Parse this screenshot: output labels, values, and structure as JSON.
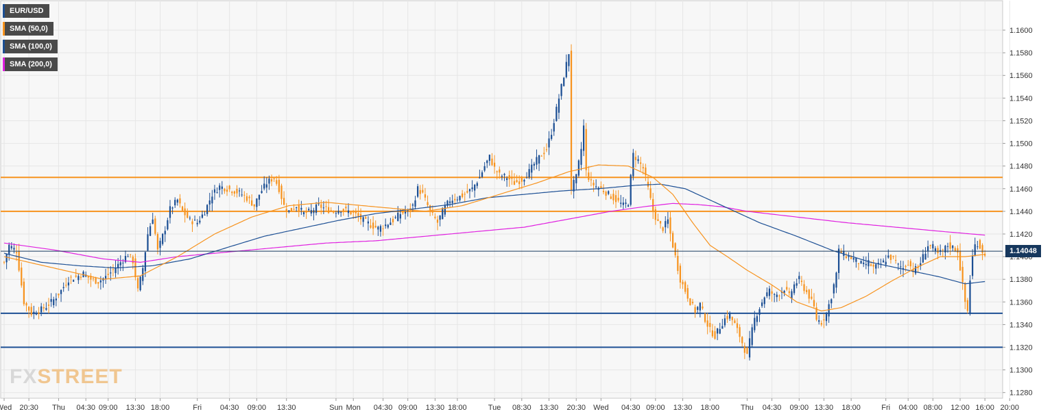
{
  "chart_data": {
    "type": "candlestick",
    "symbol": "EUR/USD",
    "legend": [
      {
        "label": "EUR/USD",
        "color": "#1c4f94"
      },
      {
        "label": "SMA (50,0)",
        "color": "#f7931e"
      },
      {
        "label": "SMA (100,0)",
        "color": "#1c4f94"
      },
      {
        "label": "SMA (200,0)",
        "color": "#e020e0"
      }
    ],
    "y_axis": {
      "ticks": [
        "1.1600",
        "1.1580",
        "1.1560",
        "1.1540",
        "1.1520",
        "1.1500",
        "1.1480",
        "1.1460",
        "1.1440",
        "1.1420",
        "1.1400",
        "1.1380",
        "1.1360",
        "1.1340",
        "1.1320",
        "1.1300",
        "1.1280"
      ],
      "ylim": [
        1.1275,
        1.1626
      ]
    },
    "x_axis": {
      "ticks": [
        "Wed",
        "20:30",
        "Thu",
        "04:30",
        "09:00",
        "13:30",
        "18:00",
        "Fri",
        "04:30",
        "09:00",
        "13:30",
        "Sun",
        "Mon",
        "04:30",
        "09:00",
        "13:30",
        "18:00",
        "Tue",
        "08:30",
        "13:30",
        "20:30",
        "Wed",
        "04:30",
        "09:00",
        "13:30",
        "18:00",
        "Thu",
        "04:30",
        "09:00",
        "13:30",
        "18:00",
        "Fri",
        "04:00",
        "08:00",
        "12:00",
        "16:00",
        "20:00"
      ],
      "tick_bar_index": [
        0,
        10,
        22,
        33,
        42,
        53,
        63,
        78,
        91,
        102,
        114,
        134,
        141,
        153,
        163,
        174,
        183,
        198,
        209,
        220,
        231,
        241,
        253,
        263,
        274,
        285,
        300,
        310,
        321,
        331,
        342,
        356,
        365,
        375,
        386,
        396,
        406
      ]
    },
    "current_price": "1.14048",
    "grid": true,
    "horizontal_levels": [
      {
        "value": 1.147,
        "color": "#f7931e"
      },
      {
        "value": 1.144,
        "color": "#f7931e"
      },
      {
        "value": 1.135,
        "color": "#1c4f94"
      },
      {
        "value": 1.132,
        "color": "#1c4f94"
      }
    ],
    "anchors": [
      [
        0,
        1.1395
      ],
      [
        2,
        1.141
      ],
      [
        5,
        1.1405
      ],
      [
        8,
        1.136
      ],
      [
        11,
        1.135
      ],
      [
        14,
        1.1352
      ],
      [
        17,
        1.1356
      ],
      [
        20,
        1.1362
      ],
      [
        23,
        1.137
      ],
      [
        26,
        1.138
      ],
      [
        29,
        1.1382
      ],
      [
        32,
        1.1385
      ],
      [
        35,
        1.138
      ],
      [
        38,
        1.1378
      ],
      [
        41,
        1.1382
      ],
      [
        44,
        1.1388
      ],
      [
        47,
        1.1395
      ],
      [
        50,
        1.1402
      ],
      [
        52,
        1.1396
      ],
      [
        54,
        1.137
      ],
      [
        56,
        1.139
      ],
      [
        58,
        1.142
      ],
      [
        60,
        1.1435
      ],
      [
        62,
        1.1405
      ],
      [
        65,
        1.1425
      ],
      [
        67,
        1.1442
      ],
      [
        70,
        1.145
      ],
      [
        72,
        1.144
      ],
      [
        75,
        1.1432
      ],
      [
        78,
        1.143
      ],
      [
        81,
        1.144
      ],
      [
        84,
        1.1455
      ],
      [
        87,
        1.1462
      ],
      [
        90,
        1.146
      ],
      [
        93,
        1.1458
      ],
      [
        96,
        1.1455
      ],
      [
        99,
        1.145
      ],
      [
        101,
        1.1445
      ],
      [
        103,
        1.1455
      ],
      [
        106,
        1.1465
      ],
      [
        109,
        1.147
      ],
      [
        111,
        1.146
      ],
      [
        113,
        1.1445
      ],
      [
        115,
        1.144
      ],
      [
        118,
        1.1445
      ],
      [
        121,
        1.1438
      ],
      [
        124,
        1.144
      ],
      [
        127,
        1.1445
      ],
      [
        130,
        1.1442
      ],
      [
        133,
        1.144
      ],
      [
        136,
        1.1442
      ],
      [
        139,
        1.144
      ],
      [
        142,
        1.1437
      ],
      [
        145,
        1.1432
      ],
      [
        148,
        1.1428
      ],
      [
        151,
        1.1425
      ],
      [
        154,
        1.1428
      ],
      [
        157,
        1.1432
      ],
      [
        160,
        1.1438
      ],
      [
        163,
        1.144
      ],
      [
        165,
        1.1445
      ],
      [
        167,
        1.146
      ],
      [
        169,
        1.1455
      ],
      [
        172,
        1.144
      ],
      [
        175,
        1.143
      ],
      [
        177,
        1.144
      ],
      [
        180,
        1.145
      ],
      [
        183,
        1.1452
      ],
      [
        186,
        1.1455
      ],
      [
        189,
        1.146
      ],
      [
        192,
        1.147
      ],
      [
        194,
        1.148
      ],
      [
        196,
        1.1488
      ],
      [
        198,
        1.1478
      ],
      [
        200,
        1.1472
      ],
      [
        203,
        1.147
      ],
      [
        206,
        1.1465
      ],
      [
        209,
        1.1468
      ],
      [
        212,
        1.1475
      ],
      [
        215,
        1.1485
      ],
      [
        217,
        1.149
      ],
      [
        219,
        1.1495
      ],
      [
        221,
        1.151
      ],
      [
        223,
        1.153
      ],
      [
        225,
        1.155
      ],
      [
        227,
        1.157
      ],
      [
        228,
        1.158
      ],
      [
        229,
        1.146
      ],
      [
        231,
        1.147
      ],
      [
        233,
        1.1495
      ],
      [
        234,
        1.1515
      ],
      [
        235,
        1.1475
      ],
      [
        237,
        1.1465
      ],
      [
        239,
        1.1462
      ],
      [
        241,
        1.146
      ],
      [
        244,
        1.1455
      ],
      [
        247,
        1.145
      ],
      [
        250,
        1.1445
      ],
      [
        252,
        1.1448
      ],
      [
        253,
        1.147
      ],
      [
        254,
        1.149
      ],
      [
        256,
        1.1485
      ],
      [
        258,
        1.1478
      ],
      [
        260,
        1.146
      ],
      [
        262,
        1.144
      ],
      [
        264,
        1.143
      ],
      [
        266,
        1.1425
      ],
      [
        268,
        1.1432
      ],
      [
        269,
        1.142
      ],
      [
        271,
        1.14
      ],
      [
        273,
        1.138
      ],
      [
        275,
        1.137
      ],
      [
        277,
        1.136
      ],
      [
        279,
        1.1352
      ],
      [
        281,
        1.1358
      ],
      [
        283,
        1.1345
      ],
      [
        285,
        1.1335
      ],
      [
        287,
        1.133
      ],
      [
        289,
        1.1338
      ],
      [
        291,
        1.1345
      ],
      [
        293,
        1.1348
      ],
      [
        295,
        1.134
      ],
      [
        297,
        1.133
      ],
      [
        299,
        1.1318
      ],
      [
        300,
        1.1312
      ],
      [
        301,
        1.1325
      ],
      [
        303,
        1.1345
      ],
      [
        305,
        1.1355
      ],
      [
        307,
        1.1365
      ],
      [
        309,
        1.137
      ],
      [
        311,
        1.1365
      ],
      [
        313,
        1.1368
      ],
      [
        315,
        1.1372
      ],
      [
        317,
        1.1365
      ],
      [
        319,
        1.1375
      ],
      [
        321,
        1.138
      ],
      [
        323,
        1.1372
      ],
      [
        325,
        1.1365
      ],
      [
        327,
        1.1355
      ],
      [
        328,
        1.1345
      ],
      [
        330,
        1.1342
      ],
      [
        332,
        1.135
      ],
      [
        334,
        1.1365
      ],
      [
        336,
        1.1385
      ],
      [
        337,
        1.1405
      ],
      [
        339,
        1.1402
      ],
      [
        341,
        1.14
      ],
      [
        343,
        1.1398
      ],
      [
        345,
        1.1395
      ],
      [
        347,
        1.1392
      ],
      [
        349,
        1.1395
      ],
      [
        351,
        1.139
      ],
      [
        353,
        1.1392
      ],
      [
        355,
        1.1395
      ],
      [
        357,
        1.14
      ],
      [
        359,
        1.1398
      ],
      [
        361,
        1.1392
      ],
      [
        363,
        1.139
      ],
      [
        365,
        1.1395
      ],
      [
        367,
        1.1388
      ],
      [
        369,
        1.139
      ],
      [
        371,
        1.14
      ],
      [
        373,
        1.141
      ],
      [
        375,
        1.1408
      ],
      [
        377,
        1.1402
      ],
      [
        379,
        1.1405
      ],
      [
        381,
        1.141
      ],
      [
        383,
        1.1408
      ],
      [
        385,
        1.1405
      ],
      [
        387,
        1.1375
      ],
      [
        388,
        1.136
      ],
      [
        389,
        1.1352
      ],
      [
        390,
        1.138
      ],
      [
        391,
        1.14
      ],
      [
        392,
        1.141
      ],
      [
        393,
        1.1412
      ],
      [
        395,
        1.1405
      ],
      [
        396,
        1.14
      ]
    ],
    "sma50": [
      [
        0,
        1.14
      ],
      [
        20,
        1.139
      ],
      [
        40,
        1.138
      ],
      [
        55,
        1.1383
      ],
      [
        70,
        1.14
      ],
      [
        85,
        1.142
      ],
      [
        100,
        1.1435
      ],
      [
        115,
        1.1445
      ],
      [
        130,
        1.1448
      ],
      [
        145,
        1.1445
      ],
      [
        155,
        1.1443
      ],
      [
        170,
        1.144
      ],
      [
        185,
        1.1445
      ],
      [
        200,
        1.1455
      ],
      [
        215,
        1.1465
      ],
      [
        228,
        1.1475
      ],
      [
        240,
        1.1481
      ],
      [
        252,
        1.148
      ],
      [
        262,
        1.147
      ],
      [
        270,
        1.1455
      ],
      [
        278,
        1.143
      ],
      [
        285,
        1.141
      ],
      [
        292,
        1.14
      ],
      [
        300,
        1.1388
      ],
      [
        310,
        1.1375
      ],
      [
        320,
        1.136
      ],
      [
        330,
        1.1352
      ],
      [
        338,
        1.1355
      ],
      [
        348,
        1.1365
      ],
      [
        358,
        1.1378
      ],
      [
        368,
        1.139
      ],
      [
        378,
        1.14
      ],
      [
        388,
        1.14
      ],
      [
        396,
        1.1402
      ]
    ],
    "sma100": [
      [
        0,
        1.1403
      ],
      [
        15,
        1.1395
      ],
      [
        30,
        1.1392
      ],
      [
        45,
        1.139
      ],
      [
        60,
        1.1392
      ],
      [
        75,
        1.1398
      ],
      [
        90,
        1.1408
      ],
      [
        105,
        1.1418
      ],
      [
        120,
        1.1425
      ],
      [
        135,
        1.1432
      ],
      [
        150,
        1.1438
      ],
      [
        165,
        1.1442
      ],
      [
        180,
        1.1446
      ],
      [
        195,
        1.1452
      ],
      [
        210,
        1.1455
      ],
      [
        225,
        1.1458
      ],
      [
        240,
        1.146
      ],
      [
        255,
        1.1463
      ],
      [
        265,
        1.1464
      ],
      [
        275,
        1.146
      ],
      [
        285,
        1.145
      ],
      [
        295,
        1.144
      ],
      [
        305,
        1.143
      ],
      [
        320,
        1.1418
      ],
      [
        335,
        1.1405
      ],
      [
        350,
        1.1395
      ],
      [
        365,
        1.1388
      ],
      [
        378,
        1.1382
      ],
      [
        388,
        1.1376
      ],
      [
        396,
        1.1378
      ]
    ],
    "sma200": [
      [
        0,
        1.1412
      ],
      [
        20,
        1.1406
      ],
      [
        40,
        1.1398
      ],
      [
        55,
        1.1395
      ],
      [
        70,
        1.14
      ],
      [
        90,
        1.1404
      ],
      [
        110,
        1.1408
      ],
      [
        130,
        1.1412
      ],
      [
        150,
        1.1414
      ],
      [
        170,
        1.1418
      ],
      [
        190,
        1.1422
      ],
      [
        210,
        1.1426
      ],
      [
        230,
        1.1434
      ],
      [
        245,
        1.144
      ],
      [
        258,
        1.1444
      ],
      [
        270,
        1.1447
      ],
      [
        280,
        1.1446
      ],
      [
        290,
        1.1444
      ],
      [
        300,
        1.144
      ],
      [
        320,
        1.1435
      ],
      [
        340,
        1.143
      ],
      [
        360,
        1.1426
      ],
      [
        380,
        1.1422
      ],
      [
        396,
        1.1419
      ]
    ]
  }
}
